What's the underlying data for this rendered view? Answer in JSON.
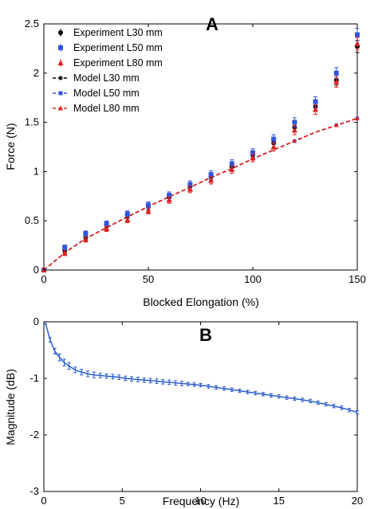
{
  "chart_data": [
    {
      "type": "scatter",
      "panel_label": "A",
      "xlabel": "Blocked Elongation (%)",
      "ylabel": "Force (N)",
      "xlim": [
        0,
        150
      ],
      "ylim": [
        0,
        2.5
      ],
      "xticks": [
        "0",
        "50",
        "100",
        "150"
      ],
      "yticks": [
        "0",
        "0.5",
        "1",
        "1.5",
        "2",
        "2.5"
      ],
      "legend_position": "top-left",
      "grid": false,
      "x": [
        0,
        10,
        20,
        30,
        40,
        50,
        60,
        70,
        80,
        90,
        100,
        110,
        120,
        130,
        140,
        150
      ],
      "series": [
        {
          "name": "Experiment L30 mm",
          "color": "#000000",
          "marker": "circle",
          "style": "errorbar",
          "values": [
            0,
            0.2,
            0.34,
            0.46,
            0.56,
            0.64,
            0.74,
            0.85,
            0.95,
            1.05,
            1.17,
            1.29,
            1.45,
            1.66,
            1.93,
            2.27
          ]
        },
        {
          "name": "Experiment L50 mm",
          "color": "#3355dd",
          "marker": "square",
          "style": "errorbar",
          "values": [
            0,
            0.23,
            0.37,
            0.47,
            0.57,
            0.66,
            0.76,
            0.87,
            0.97,
            1.08,
            1.19,
            1.33,
            1.5,
            1.71,
            2.0,
            2.39
          ]
        },
        {
          "name": "Experiment L80 mm",
          "color": "#dd2222",
          "marker": "triangle",
          "style": "errorbar",
          "values": [
            0,
            0.17,
            0.31,
            0.42,
            0.51,
            0.6,
            0.71,
            0.82,
            0.91,
            1.02,
            1.14,
            1.25,
            1.42,
            1.63,
            1.91,
            2.3
          ]
        },
        {
          "name": "Model L30 mm",
          "color": "#000000",
          "marker": "circle",
          "style": "dashed",
          "values": [
            0,
            0.175,
            0.32,
            0.43,
            0.54,
            0.645,
            0.745,
            0.84,
            0.94,
            1.03,
            1.13,
            1.22,
            1.31,
            1.4,
            1.47,
            1.54
          ]
        },
        {
          "name": "Model L50 mm",
          "color": "#3355dd",
          "marker": "square",
          "style": "dashed",
          "values": [
            0,
            0.175,
            0.32,
            0.43,
            0.54,
            0.645,
            0.745,
            0.84,
            0.94,
            1.03,
            1.13,
            1.22,
            1.31,
            1.4,
            1.47,
            1.54
          ]
        },
        {
          "name": "Model L80 mm",
          "color": "#dd2222",
          "marker": "triangle",
          "style": "dashed",
          "values": [
            0,
            0.175,
            0.32,
            0.43,
            0.54,
            0.645,
            0.745,
            0.84,
            0.94,
            1.03,
            1.13,
            1.22,
            1.31,
            1.4,
            1.47,
            1.54
          ]
        }
      ]
    },
    {
      "type": "line",
      "panel_label": "B",
      "xlabel": "Frequency (Hz)",
      "ylabel": "Magnitude (dB)",
      "xlim": [
        0,
        20
      ],
      "ylim": [
        -3,
        0
      ],
      "xticks": [
        "0",
        "5",
        "10",
        "15",
        "20"
      ],
      "yticks": [
        "-3",
        "-2",
        "-1",
        "0"
      ],
      "grid": false,
      "series": [
        {
          "color": "#2255cc",
          "style": "line-errorbar",
          "x": [
            0.1,
            0.4,
            0.7,
            1.0,
            1.3,
            1.6,
            2.0,
            2.4,
            2.8,
            3.2,
            3.6,
            4.0,
            4.4,
            4.8,
            5.2,
            5.6,
            6.0,
            6.4,
            6.8,
            7.2,
            7.6,
            8.0,
            8.4,
            8.8,
            9.2,
            9.6,
            10.0,
            10.5,
            11.0,
            11.5,
            12.0,
            12.5,
            13.0,
            13.5,
            14.0,
            14.5,
            15.0,
            15.5,
            16.0,
            16.5,
            17.0,
            17.5,
            18.0,
            18.5,
            19.0,
            19.5,
            20.0
          ],
          "values": [
            -0.02,
            -0.32,
            -0.52,
            -0.63,
            -0.72,
            -0.78,
            -0.85,
            -0.89,
            -0.92,
            -0.94,
            -0.95,
            -0.96,
            -0.97,
            -0.98,
            -1.0,
            -1.01,
            -1.02,
            -1.03,
            -1.04,
            -1.05,
            -1.06,
            -1.07,
            -1.08,
            -1.09,
            -1.1,
            -1.11,
            -1.12,
            -1.14,
            -1.16,
            -1.18,
            -1.2,
            -1.22,
            -1.24,
            -1.26,
            -1.28,
            -1.3,
            -1.32,
            -1.34,
            -1.36,
            -1.38,
            -1.4,
            -1.43,
            -1.46,
            -1.49,
            -1.52,
            -1.56,
            -1.6
          ],
          "err": [
            0.02,
            0.04,
            0.05,
            0.06,
            0.06,
            0.06,
            0.05,
            0.05,
            0.05,
            0.05,
            0.04,
            0.04,
            0.04,
            0.04,
            0.04,
            0.04,
            0.04,
            0.04,
            0.04,
            0.04,
            0.04,
            0.04,
            0.04,
            0.04,
            0.03,
            0.03,
            0.03,
            0.03,
            0.03,
            0.03,
            0.03,
            0.03,
            0.03,
            0.03,
            0.03,
            0.03,
            0.03,
            0.03,
            0.03,
            0.03,
            0.03,
            0.03,
            0.03,
            0.03,
            0.03,
            0.03,
            0.03
          ]
        }
      ]
    }
  ]
}
